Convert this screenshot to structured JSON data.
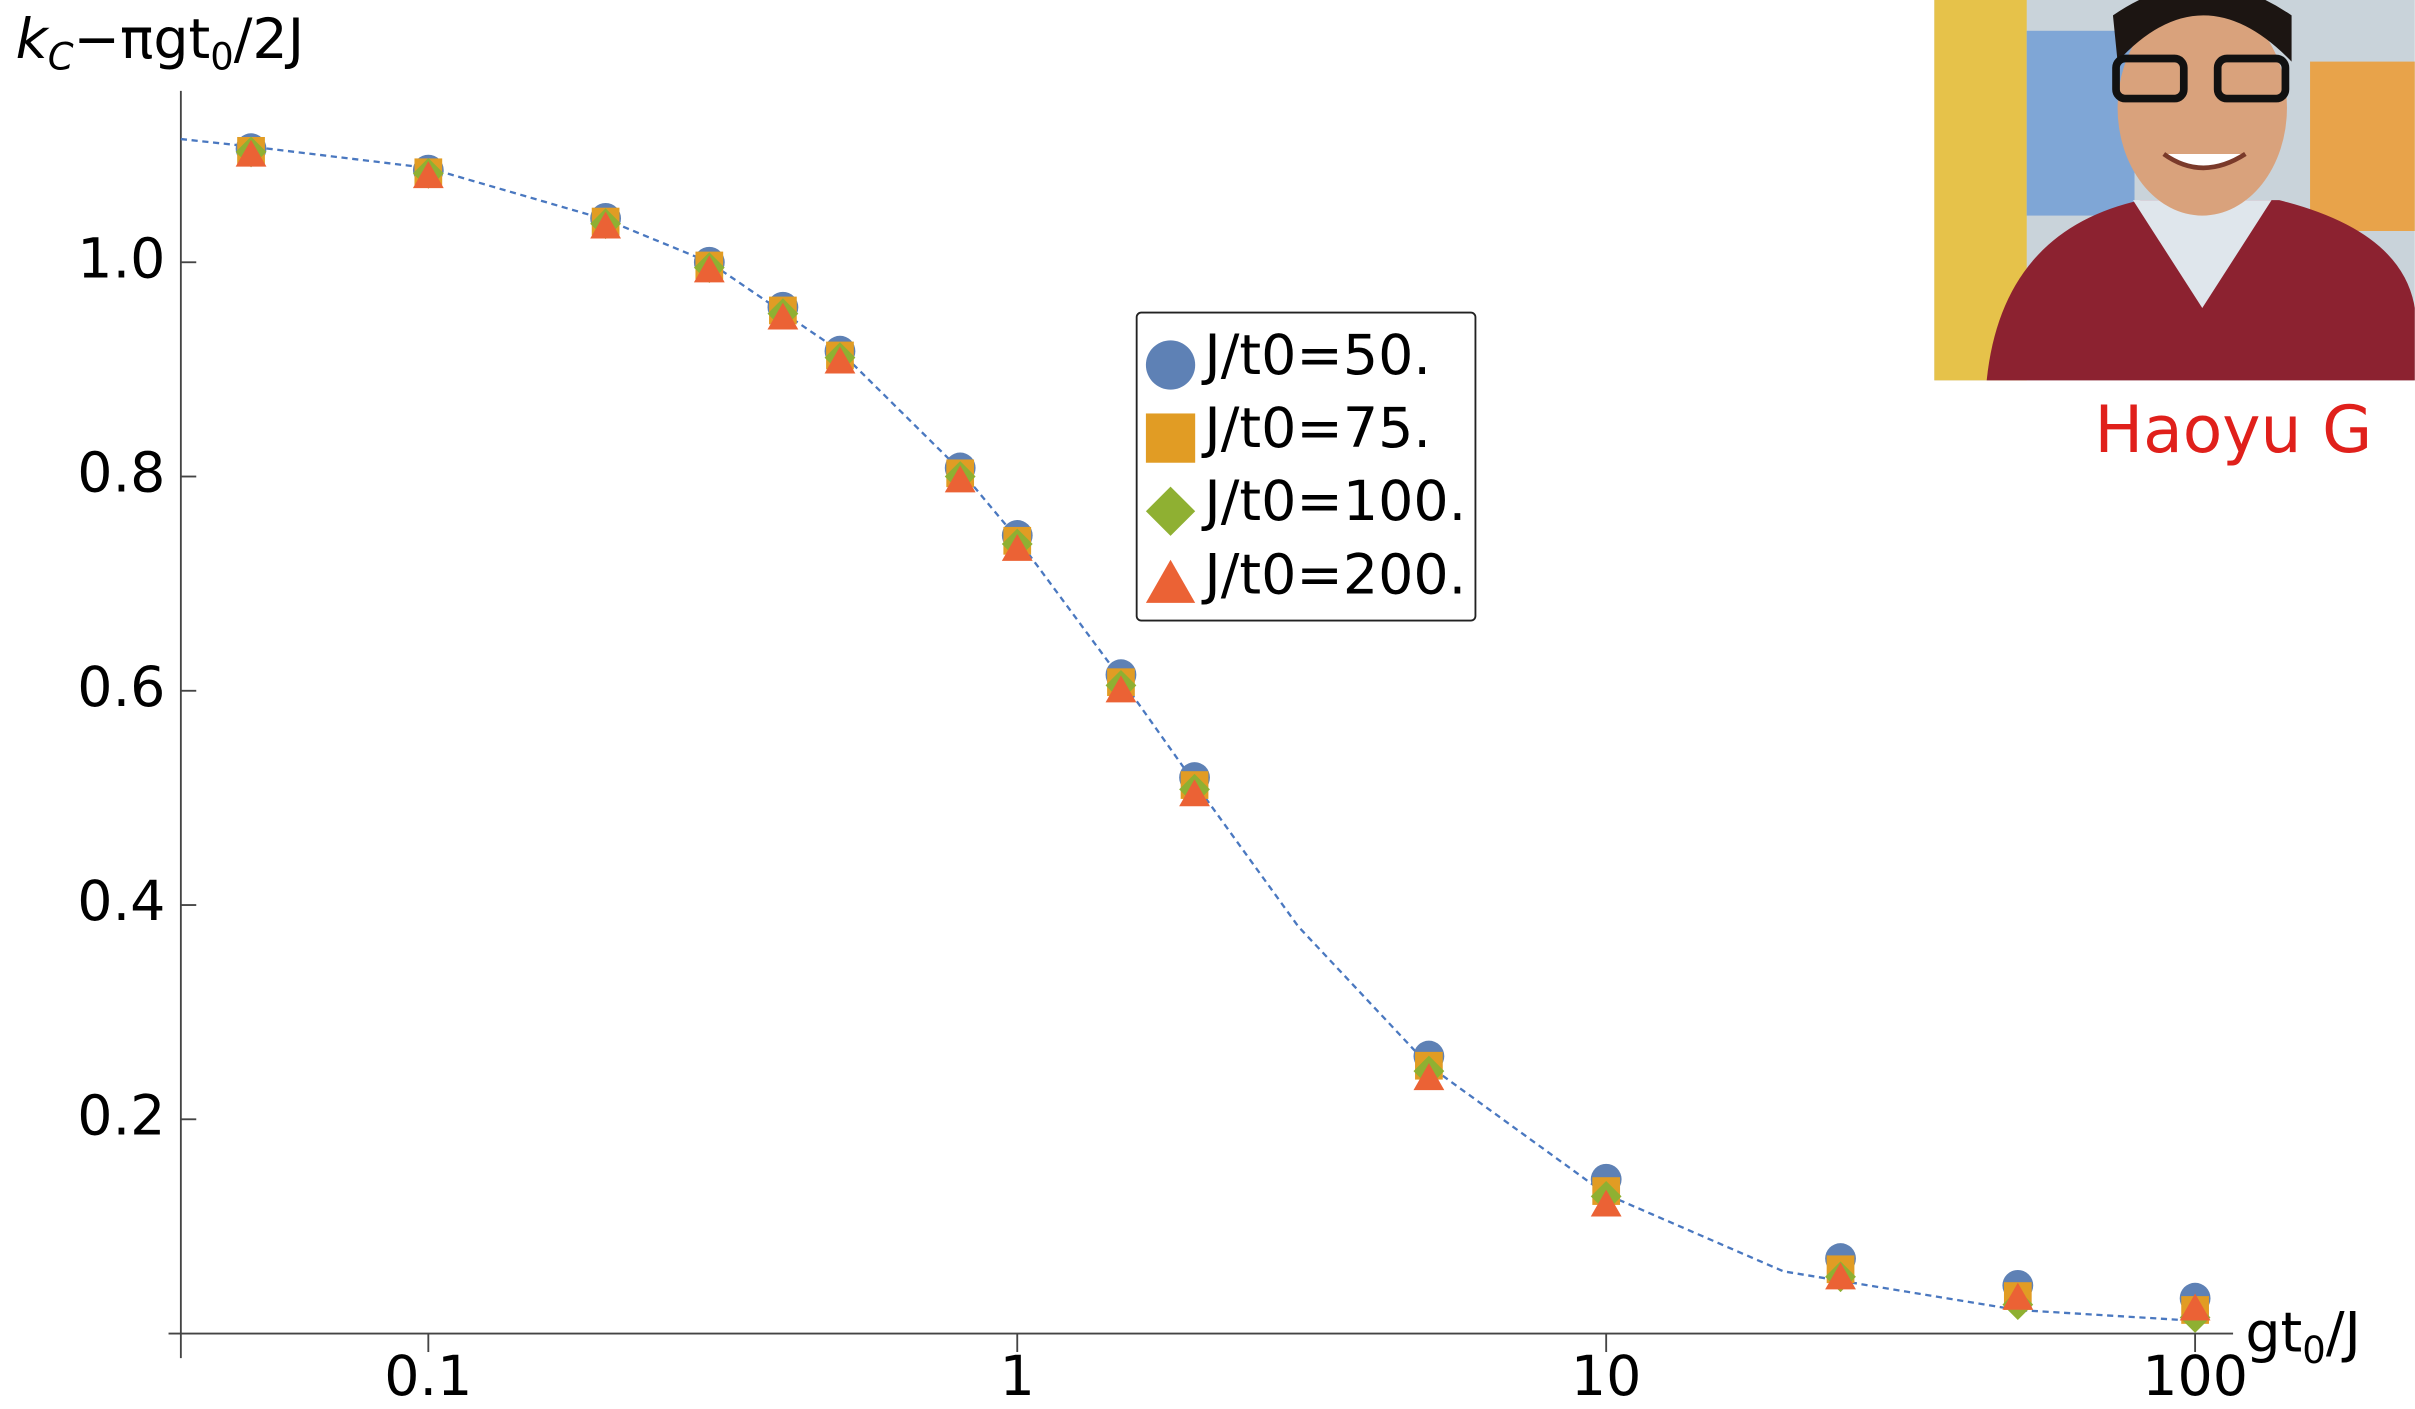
{
  "chart_data": {
    "type": "scatter",
    "xlog": true,
    "ylabel": [
      "k",
      "C",
      "−πgt",
      "0",
      "/2J"
    ],
    "xlabel": [
      "gt",
      "0",
      "/J"
    ],
    "x": [
      0.05,
      0.1,
      0.2,
      0.3,
      0.4,
      0.5,
      0.8,
      1,
      1.5,
      2,
      5,
      10,
      25,
      50,
      100
    ],
    "series": [
      {
        "name": "J/t0=50.",
        "color": "#5e81b5",
        "marker": "circle",
        "values": [
          1.106,
          1.086,
          1.041,
          1.0,
          0.958,
          0.917,
          0.808,
          0.745,
          0.615,
          0.519,
          0.259,
          0.144,
          0.07,
          0.045,
          0.033
        ]
      },
      {
        "name": "J/t0=75.",
        "color": "#e19c24",
        "marker": "square",
        "values": [
          1.104,
          1.084,
          1.038,
          0.997,
          0.955,
          0.913,
          0.803,
          0.74,
          0.608,
          0.512,
          0.25,
          0.133,
          0.06,
          0.035,
          0.022
        ]
      },
      {
        "name": "J/t0=100.",
        "color": "#8fb032",
        "marker": "diamond",
        "values": [
          1.103,
          1.083,
          1.036,
          0.995,
          0.952,
          0.911,
          0.8,
          0.737,
          0.605,
          0.508,
          0.245,
          0.128,
          0.053,
          0.027,
          0.015
        ]
      },
      {
        "name": "J/t0=200.",
        "color": "#eb6235",
        "marker": "triangle",
        "values": [
          1.1,
          1.08,
          1.033,
          0.992,
          0.948,
          0.907,
          0.796,
          0.732,
          0.6,
          0.503,
          0.238,
          0.12,
          0.052,
          0.033,
          0.023
        ]
      }
    ],
    "curve": {
      "color": "#4a78c0",
      "dashed": true,
      "x": [
        0.038,
        0.05,
        0.1,
        0.2,
        0.3,
        0.5,
        0.8,
        1,
        1.5,
        2,
        3,
        5,
        10,
        20,
        50,
        100
      ],
      "values": [
        1.115,
        1.108,
        1.088,
        1.04,
        1.0,
        0.917,
        0.806,
        0.742,
        0.611,
        0.514,
        0.38,
        0.25,
        0.13,
        0.058,
        0.022,
        0.012
      ]
    },
    "xlim": [
      0.038,
      116
    ],
    "ylim": [
      0,
      1.16
    ],
    "xticks": [
      0.1,
      1,
      10,
      100
    ],
    "yticks": [
      0.2,
      0.4,
      0.6,
      0.8,
      {
        "value": 1,
        "label": "1.0"
      }
    ],
    "legend": "center"
  },
  "caption": "Haoyu G"
}
